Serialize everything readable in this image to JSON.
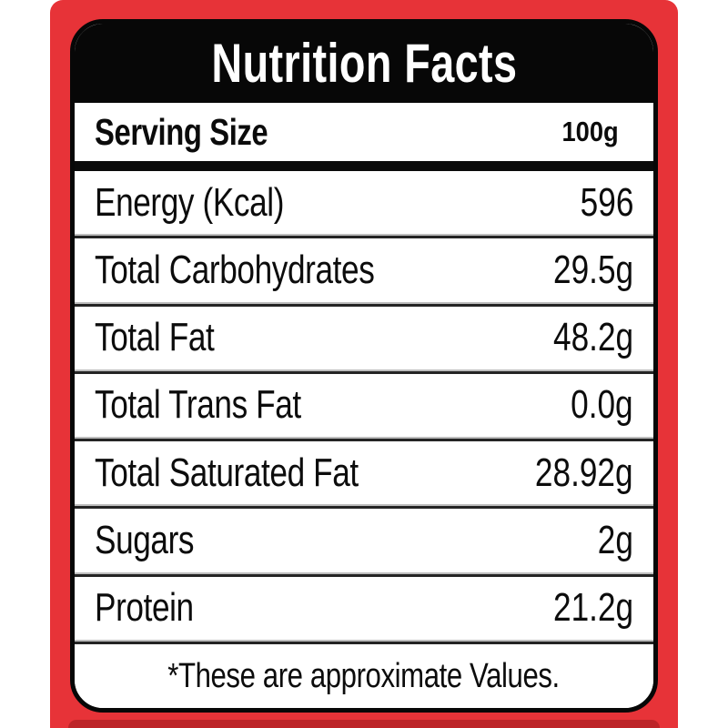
{
  "label": {
    "title": "Nutrition Facts",
    "serving": {
      "label": "Serving Size",
      "value": "100g"
    },
    "rows": [
      {
        "label": "Energy (Kcal)",
        "value": "596"
      },
      {
        "label": "Total Carbohydrates",
        "value": "29.5g"
      },
      {
        "label": "Total Fat",
        "value": "48.2g"
      },
      {
        "label": "Total Trans Fat",
        "value": "0.0g"
      },
      {
        "label": "Total Saturated Fat",
        "value": "28.92g"
      },
      {
        "label": "Sugars",
        "value": "2g"
      },
      {
        "label": "Protein",
        "value": "21.2g"
      }
    ],
    "footnote": "*These are approximate Values."
  },
  "colors": {
    "background_red": "#e73338",
    "bottom_accent_red": "#bd2428",
    "panel_border": "#070707",
    "header_bg": "#070707",
    "header_text": "#ffffff",
    "body_text": "#0c0c0c",
    "page_bg": "#ffffff"
  }
}
